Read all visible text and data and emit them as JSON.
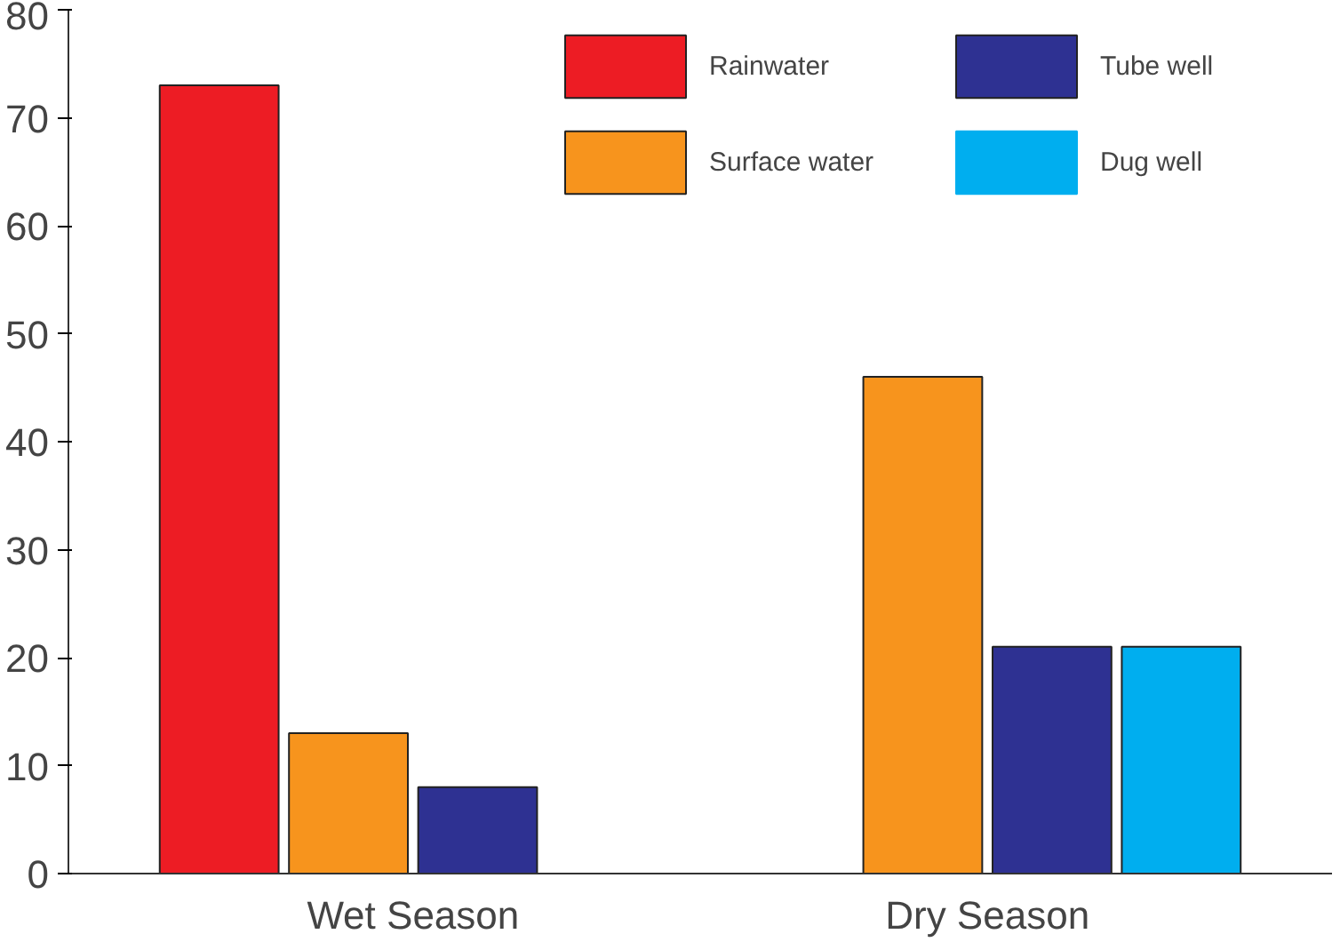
{
  "chart_data": {
    "type": "bar",
    "categories": [
      "Wet Season",
      "Dry Season"
    ],
    "series": [
      {
        "name": "Rainwater",
        "color": "#ed1c24",
        "values": [
          73,
          0
        ]
      },
      {
        "name": "Surface water",
        "color": "#f7941d",
        "values": [
          13,
          46
        ]
      },
      {
        "name": "Tube well",
        "color": "#2e3192",
        "values": [
          8,
          21
        ]
      },
      {
        "name": "Dug well",
        "color": "#00aeef",
        "values": [
          0,
          21
        ]
      }
    ],
    "ylim": [
      0,
      80
    ],
    "yticks": [
      0,
      10,
      20,
      30,
      40,
      50,
      60,
      70,
      80
    ],
    "grid": false,
    "legend": "top right"
  }
}
